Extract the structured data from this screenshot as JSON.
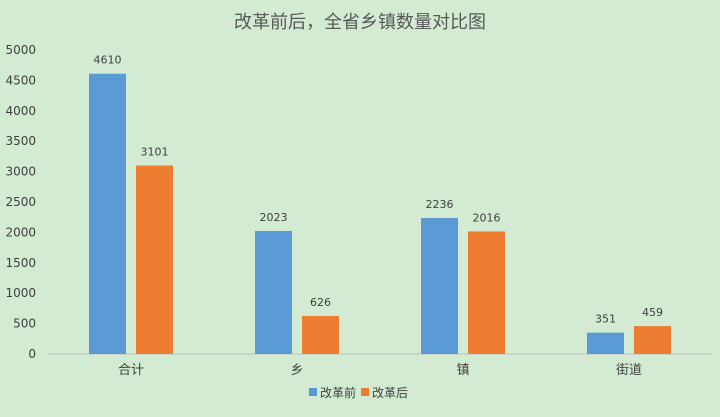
{
  "chart_data": {
    "type": "bar",
    "title": "改革前后，全省乡镇数量对比图",
    "categories": [
      "合计",
      "乡",
      "镇",
      "街道"
    ],
    "series": [
      {
        "name": "改革前",
        "values": [
          4610,
          2023,
          2236,
          351
        ],
        "color": "#5b9bd5"
      },
      {
        "name": "改革后",
        "values": [
          3101,
          626,
          2016,
          459
        ],
        "color": "#ed7d31"
      }
    ],
    "yticks": [
      0,
      500,
      1000,
      1500,
      2000,
      2500,
      3000,
      3500,
      4000,
      4500,
      5000
    ],
    "ylim": [
      0,
      5000
    ],
    "grid": false,
    "legend_position": "bottom"
  }
}
